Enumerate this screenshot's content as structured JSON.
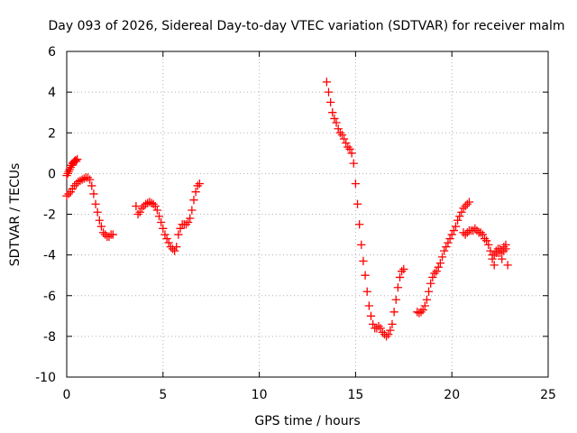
{
  "chart_data": {
    "type": "scatter",
    "title": "Day 093 of 2026, Sidereal Day-to-day VTEC variation (SDTVAR) for receiver malm",
    "xlabel": "GPS time / hours",
    "ylabel": "SDTVAR / TECUs",
    "xlim": [
      0,
      25
    ],
    "ylim": [
      -10,
      6
    ],
    "xticks": [
      0,
      5,
      10,
      15,
      20,
      25
    ],
    "yticks": [
      -10,
      -8,
      -6,
      -4,
      -2,
      0,
      2,
      4,
      6
    ],
    "grid": true,
    "marker": "plus",
    "color": "#ff0000",
    "segments": [
      {
        "x": [
          0.0,
          0.05,
          0.1,
          0.15,
          0.2,
          0.25,
          0.3,
          0.35,
          0.4,
          0.45,
          0.5,
          0.55
        ],
        "y": [
          -0.1,
          0.0,
          0.1,
          0.2,
          0.3,
          0.4,
          0.5,
          0.55,
          0.6,
          0.65,
          0.6,
          0.7
        ]
      },
      {
        "x": [
          0.0,
          0.1,
          0.2,
          0.3,
          0.4,
          0.5,
          0.6,
          0.7,
          0.8,
          0.9,
          1.0,
          1.1,
          1.2,
          1.3,
          1.4,
          1.5,
          1.6,
          1.7,
          1.8,
          1.9,
          2.0,
          2.1,
          2.2,
          2.3,
          2.4
        ],
        "y": [
          -1.1,
          -1.0,
          -0.9,
          -0.75,
          -0.6,
          -0.5,
          -0.4,
          -0.35,
          -0.3,
          -0.25,
          -0.2,
          -0.2,
          -0.3,
          -0.6,
          -1.0,
          -1.5,
          -1.9,
          -2.3,
          -2.6,
          -2.9,
          -3.0,
          -3.1,
          -3.1,
          -3.0,
          -3.0
        ]
      },
      {
        "x": [
          3.6,
          3.7,
          3.8,
          3.9,
          4.0,
          4.1,
          4.2,
          4.3,
          4.4,
          4.5,
          4.6,
          4.7,
          4.8,
          4.9,
          5.0,
          5.1,
          5.2,
          5.3,
          5.4,
          5.5,
          5.6,
          5.7,
          5.8,
          5.9,
          6.0,
          6.1,
          6.2,
          6.3,
          6.4,
          6.5,
          6.6,
          6.7,
          6.8,
          6.9
        ],
        "y": [
          -1.6,
          -2.0,
          -1.9,
          -1.7,
          -1.6,
          -1.5,
          -1.45,
          -1.4,
          -1.45,
          -1.5,
          -1.6,
          -1.8,
          -2.1,
          -2.4,
          -2.7,
          -3.0,
          -3.2,
          -3.4,
          -3.6,
          -3.7,
          -3.8,
          -3.6,
          -3.0,
          -2.7,
          -2.5,
          -2.5,
          -2.5,
          -2.4,
          -2.2,
          -1.8,
          -1.3,
          -0.9,
          -0.6,
          -0.5
        ]
      },
      {
        "x": [
          13.5,
          13.6,
          13.7,
          13.8,
          13.9,
          14.0,
          14.1,
          14.2,
          14.3,
          14.4,
          14.5,
          14.6,
          14.7,
          14.8,
          14.9,
          15.0,
          15.1,
          15.2,
          15.3,
          15.4,
          15.5,
          15.6,
          15.7,
          15.8,
          15.9,
          16.0,
          16.1,
          16.2,
          16.3,
          16.4,
          16.5,
          16.6,
          16.7,
          16.8,
          16.9,
          17.0,
          17.1,
          17.2,
          17.3,
          17.4,
          17.5
        ],
        "y": [
          4.5,
          4.0,
          3.5,
          3.0,
          2.7,
          2.5,
          2.2,
          2.0,
          1.9,
          1.7,
          1.5,
          1.3,
          1.2,
          1.0,
          0.5,
          -0.5,
          -1.5,
          -2.5,
          -3.5,
          -4.3,
          -5.0,
          -5.8,
          -6.5,
          -7.0,
          -7.4,
          -7.6,
          -7.6,
          -7.5,
          -7.6,
          -7.8,
          -7.9,
          -8.0,
          -7.9,
          -7.7,
          -7.4,
          -6.8,
          -6.2,
          -5.6,
          -5.1,
          -4.8,
          -4.7
        ]
      },
      {
        "x": [
          18.2,
          18.3,
          18.4,
          18.5,
          18.6,
          18.7,
          18.8,
          18.9,
          19.0,
          19.1,
          19.2,
          19.3,
          19.4,
          19.5,
          19.6,
          19.7,
          19.8,
          19.9,
          20.0,
          20.1,
          20.2,
          20.3,
          20.4,
          20.5,
          20.6,
          20.7,
          20.8,
          20.9
        ],
        "y": [
          -6.8,
          -6.85,
          -6.8,
          -6.7,
          -6.5,
          -6.2,
          -5.8,
          -5.4,
          -5.1,
          -4.9,
          -4.8,
          -4.6,
          -4.4,
          -4.1,
          -3.8,
          -3.6,
          -3.4,
          -3.2,
          -3.0,
          -2.8,
          -2.6,
          -2.3,
          -2.1,
          -1.9,
          -1.7,
          -1.6,
          -1.5,
          -1.4
        ]
      },
      {
        "x": [
          20.6,
          20.7,
          20.8,
          20.9,
          21.0,
          21.1,
          21.2,
          21.3,
          21.4,
          21.5,
          21.6,
          21.7,
          21.8,
          21.9,
          22.0,
          22.1,
          22.2,
          22.3,
          22.4,
          22.5,
          22.6,
          22.7,
          22.8,
          22.9
        ],
        "y": [
          -2.9,
          -3.0,
          -2.9,
          -2.8,
          -2.8,
          -2.8,
          -2.7,
          -2.8,
          -2.9,
          -2.9,
          -3.0,
          -3.2,
          -3.3,
          -3.5,
          -3.8,
          -4.0,
          -4.5,
          -3.9,
          -3.7,
          -3.9,
          -4.2,
          -3.8,
          -3.7,
          -4.5
        ]
      },
      {
        "x": [
          22.1,
          22.2,
          22.3,
          22.4,
          22.5,
          22.6,
          22.7,
          22.8
        ],
        "y": [
          -4.2,
          -4.0,
          -3.8,
          -3.9,
          -3.7,
          -3.8,
          -3.6,
          -3.5
        ]
      }
    ]
  }
}
